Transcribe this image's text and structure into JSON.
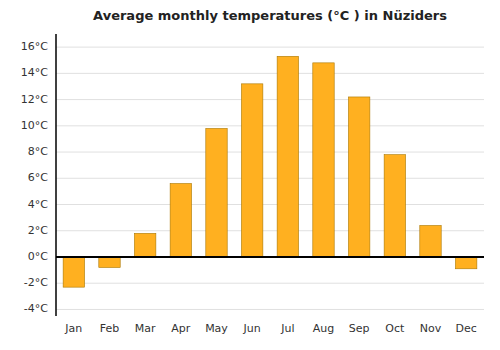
{
  "chart_data": {
    "type": "bar",
    "title": "Average monthly temperatures (°C ) in Nüziders",
    "categories": [
      "Jan",
      "Feb",
      "Mar",
      "Apr",
      "May",
      "Jun",
      "Jul",
      "Aug",
      "Sep",
      "Oct",
      "Nov",
      "Dec"
    ],
    "values": [
      -2.3,
      -0.8,
      1.8,
      5.6,
      9.8,
      13.2,
      15.3,
      14.8,
      12.2,
      7.8,
      2.4,
      -0.9
    ],
    "color": "#FFB020",
    "ylim": [
      -4.5,
      17
    ],
    "yticks": [
      {
        "value": 16,
        "label": "16°C"
      },
      {
        "value": 14,
        "label": "14°C"
      },
      {
        "value": 12,
        "label": "12°C"
      },
      {
        "value": 10,
        "label": "10°C"
      },
      {
        "value": 8,
        "label": "8°C"
      },
      {
        "value": 6,
        "label": "6°C"
      },
      {
        "value": 4,
        "label": "4°C"
      },
      {
        "value": 2,
        "label": "2°C"
      },
      {
        "value": 0,
        "label": "0°C"
      },
      {
        "value": -2,
        "label": "-2°C"
      },
      {
        "value": -4,
        "label": "-4°C"
      }
    ],
    "grid": true
  }
}
